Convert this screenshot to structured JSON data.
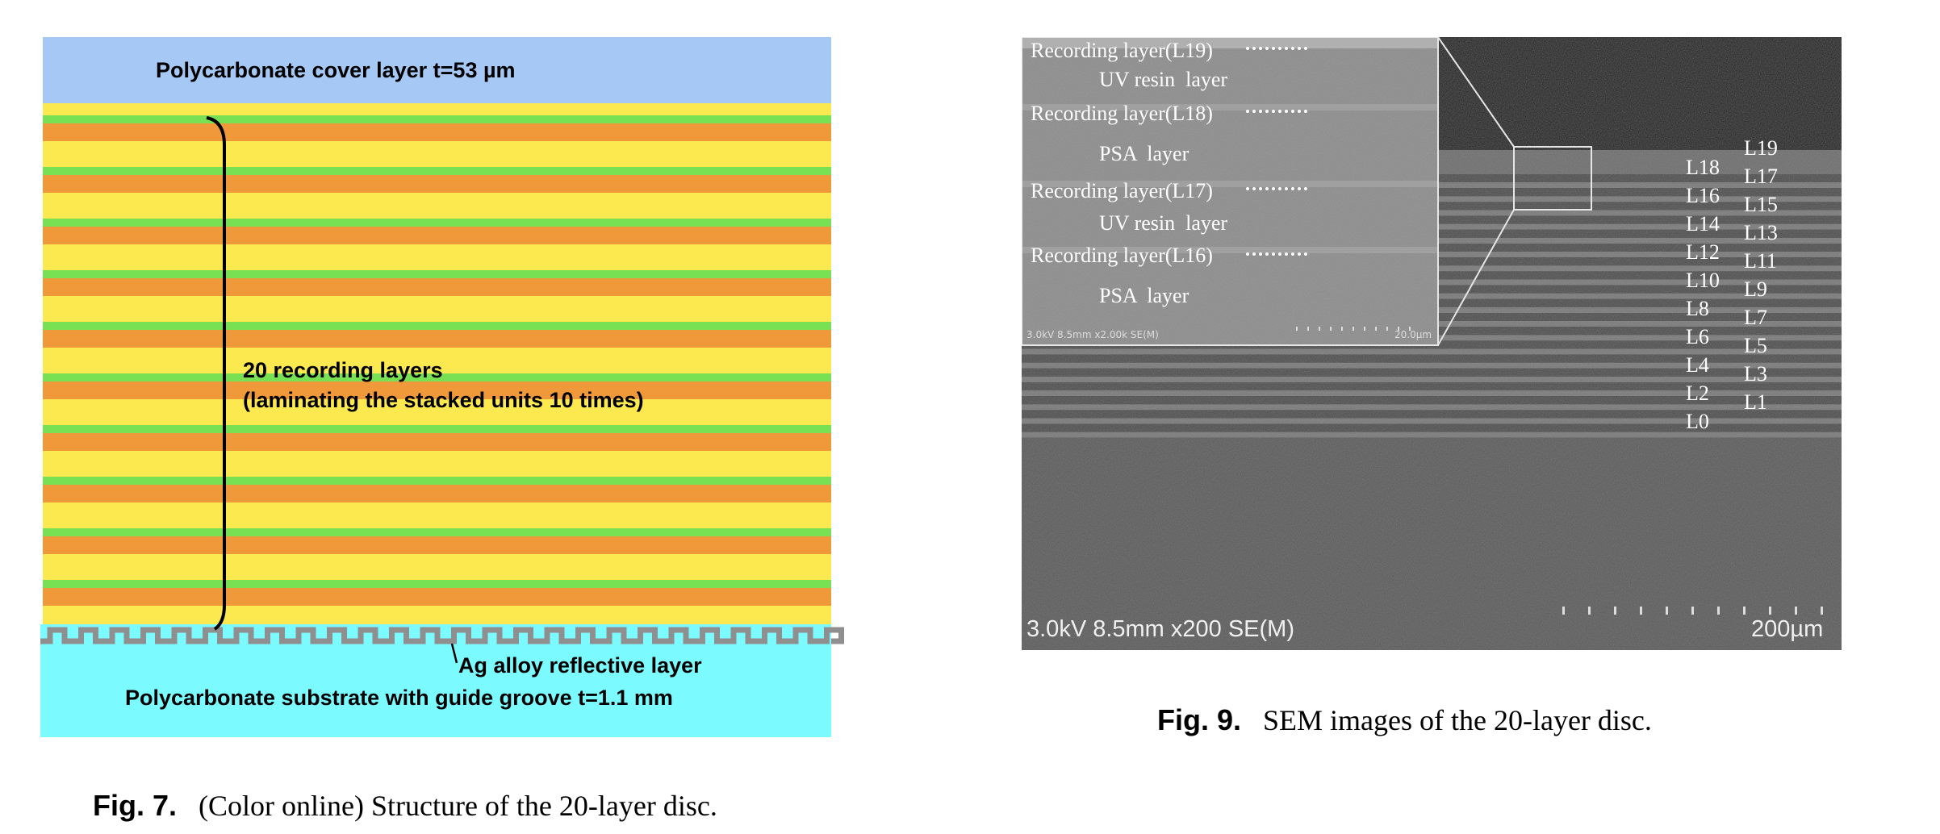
{
  "fig7": {
    "cover_label": "Polycarbonate cover layer t=53 µm",
    "recording_label_line1": "20 recording layers",
    "recording_label_line2": "(laminating the stacked units 10 times)",
    "reflective_label": "Ag alloy reflective layer",
    "substrate_label": "Polycarbonate substrate with guide groove t=1.1 mm",
    "caption_number": "Fig. 7.",
    "caption_text": "(Color online) Structure of the 20-layer disc.",
    "colors": {
      "cover": "#a6c8f5",
      "substrate": "#7bfbff",
      "yellow_layer": "#fce94f",
      "green_layer": "#77e053",
      "orange_layer": "#f0993a",
      "reflective": "#8f8f8f"
    }
  },
  "fig9": {
    "inset_labels": [
      "Recording layer(L19)",
      "UV resin  layer",
      "Recording layer(L18)",
      "PSA  layer",
      "Recording layer(L17)",
      "UV resin  layer",
      "Recording layer(L16)",
      "PSA  layer"
    ],
    "inset_footer_left": "3.0kV 8.5mm x2.00k SE(M)",
    "inset_footer_right": "20.0µm",
    "layer_labels_left": [
      "L18",
      "L16",
      "L14",
      "L12",
      "L10",
      "L8",
      "L6",
      "L4",
      "L2",
      "L0"
    ],
    "layer_labels_right": [
      "L19",
      "L17",
      "L15",
      "L13",
      "L11",
      "L9",
      "L7",
      "L5",
      "L3",
      "L1"
    ],
    "sem_footer_left": "3.0kV 8.5mm x200 SE(M)",
    "sem_footer_right": "200µm",
    "caption_number": "Fig. 9.",
    "caption_text": "SEM images of the 20-layer disc."
  }
}
